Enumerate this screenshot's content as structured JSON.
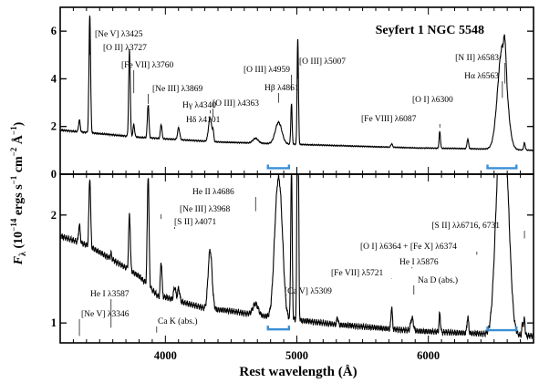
{
  "chart_data": {
    "type": "line",
    "title": "Seyfert 1 NGC 5548",
    "xlabel": "Rest wavelength (Å)",
    "ylabel": "F_λ (10^-14 ergs s^-1 cm^-2 Å^-1)",
    "ylabel_parts": {
      "main": "F",
      "sub": "λ",
      "rest": " (10",
      "exp1": "−14",
      "units": " ergs s",
      "exp2": "−1",
      "cm": " cm",
      "exp3": "−2",
      "ang": " Å",
      "exp4": "−1",
      "close": ")"
    },
    "xlim": [
      3200,
      6800
    ],
    "xticks": [
      {
        "v": 4000,
        "label": "4000"
      },
      {
        "v": 5000,
        "label": "5000"
      },
      {
        "v": 6000,
        "label": "6000"
      }
    ],
    "grid": false,
    "panels": [
      {
        "id": "top",
        "scale": "linear",
        "ylim": [
          0,
          7
        ],
        "yticks": [
          {
            "v": 0,
            "label": "0"
          },
          {
            "v": 2,
            "label": "2"
          },
          {
            "v": 4,
            "label": "4"
          },
          {
            "v": 6,
            "label": "6"
          }
        ],
        "continuum": [
          [
            3200,
            1.85
          ],
          [
            3500,
            1.7
          ],
          [
            3800,
            1.55
          ],
          [
            4100,
            1.45
          ],
          [
            4400,
            1.35
          ],
          [
            4700,
            1.3
          ],
          [
            5000,
            1.25
          ],
          [
            5300,
            1.2
          ],
          [
            5600,
            1.15
          ],
          [
            5900,
            1.1
          ],
          [
            6200,
            1.08
          ],
          [
            6500,
            1.05
          ],
          [
            6800,
            1.0
          ]
        ],
        "lines": [
          {
            "w": 3346,
            "h": 0.5,
            "s": 6
          },
          {
            "w": 3425,
            "h": 5.0,
            "s": 6
          },
          {
            "w": 3727,
            "h": 3.6,
            "s": 6
          },
          {
            "w": 3760,
            "h": 0.5,
            "s": 6
          },
          {
            "w": 3869,
            "h": 1.4,
            "s": 6
          },
          {
            "w": 3968,
            "h": 0.6,
            "s": 6
          },
          {
            "w": 4101,
            "h": 0.5,
            "s": 8
          },
          {
            "w": 4340,
            "h": 1.0,
            "s": 12
          },
          {
            "w": 4363,
            "h": 0.4,
            "s": 5
          },
          {
            "w": 4686,
            "h": 0.2,
            "s": 20
          },
          {
            "w": 4861,
            "h": 0.9,
            "s": 25
          },
          {
            "w": 4959,
            "h": 1.7,
            "s": 5
          },
          {
            "w": 5007,
            "h": 4.5,
            "s": 5
          },
          {
            "w": 5721,
            "h": 0.15,
            "s": 6
          },
          {
            "w": 6087,
            "h": 0.7,
            "s": 5
          },
          {
            "w": 6300,
            "h": 0.4,
            "s": 6
          },
          {
            "w": 6563,
            "h": 4.3,
            "s": 35
          },
          {
            "w": 6583,
            "h": 1.0,
            "s": 8
          },
          {
            "w": 6731,
            "h": 0.3,
            "s": 6
          }
        ],
        "annotations": [
          {
            "text": "[Ne V] λ3425",
            "w": 3425,
            "v": 5.0
          },
          {
            "text": "[O II] λ3727",
            "w": 3727,
            "v": 5.1
          },
          {
            "text": "[Fe VII] λ3760",
            "w": 3760,
            "v": 3.4
          },
          {
            "text": "[Ne III] λ3869",
            "w": 3869,
            "v": 2.95
          },
          {
            "text": "Hγ λ4340",
            "w": 4340,
            "v": 2.55
          },
          {
            "text": "Hδ λ4101",
            "w": 4101,
            "v": 2.05
          },
          {
            "text": "[O III] λ4363",
            "w": 4363,
            "v": 2.4
          },
          {
            "text": "[O III] λ4959",
            "w": 4959,
            "v": 3.5
          },
          {
            "text": "Hβ λ4861",
            "w": 4861,
            "v": 3.0
          },
          {
            "text": "[O III] λ5007",
            "w": 5007,
            "v": 4.0
          },
          {
            "text": "[Fe VIII] λ6087",
            "w": 6087,
            "v": 1.95
          },
          {
            "text": "[O I] λ6300",
            "w": 6300,
            "v": 3.1
          },
          {
            "text": "[N II] λ6583",
            "w": 6583,
            "v": 3.8
          },
          {
            "text": "Hα λ6563",
            "w": 6563,
            "v": 3.2
          }
        ],
        "broad_markers": [
          {
            "x1": 4780,
            "x2": 4940,
            "v": 0.25
          },
          {
            "x1": 6450,
            "x2": 6670,
            "v": 0.25
          }
        ]
      },
      {
        "id": "bottom",
        "scale": "log",
        "ylim": [
          0.88,
          2.6
        ],
        "yticks": [
          {
            "v": 1,
            "label": "1"
          },
          {
            "v": 2,
            "label": "2"
          }
        ],
        "continuum": [
          [
            3200,
            1.75
          ],
          [
            3400,
            1.65
          ],
          [
            3600,
            1.5
          ],
          [
            3800,
            1.35
          ],
          [
            3950,
            1.18
          ],
          [
            4000,
            1.18
          ],
          [
            4100,
            1.15
          ],
          [
            4300,
            1.1
          ],
          [
            4500,
            1.08
          ],
          [
            4700,
            1.05
          ],
          [
            5000,
            1.02
          ],
          [
            5300,
            0.99
          ],
          [
            5600,
            0.97
          ],
          [
            5900,
            0.95
          ],
          [
            6200,
            0.94
          ],
          [
            6500,
            0.93
          ],
          [
            6800,
            0.92
          ]
        ],
        "lines": [
          {
            "w": 3346,
            "h": 0.2,
            "s": 6
          },
          {
            "w": 3425,
            "h": 0.9,
            "s": 6
          },
          {
            "w": 3587,
            "h": 0.05,
            "s": 5
          },
          {
            "w": 3727,
            "h": 0.6,
            "s": 6
          },
          {
            "w": 3869,
            "h": 1.3,
            "s": 6
          },
          {
            "w": 3968,
            "h": 0.3,
            "s": 6
          },
          {
            "w": 4071,
            "h": 0.1,
            "s": 8
          },
          {
            "w": 4101,
            "h": 0.1,
            "s": 8
          },
          {
            "w": 4340,
            "h": 0.5,
            "s": 14
          },
          {
            "w": 4686,
            "h": 0.08,
            "s": 20
          },
          {
            "w": 4861,
            "h": 1.5,
            "s": 25
          },
          {
            "w": 4959,
            "h": 1.6,
            "s": 5
          },
          {
            "w": 5007,
            "h": 3.5,
            "s": 5
          },
          {
            "w": 5309,
            "h": 0.05,
            "s": 5
          },
          {
            "w": 5721,
            "h": 0.15,
            "s": 5
          },
          {
            "w": 5876,
            "h": 0.08,
            "s": 10
          },
          {
            "w": 6087,
            "h": 0.12,
            "s": 5
          },
          {
            "w": 6300,
            "h": 0.1,
            "s": 6
          },
          {
            "w": 6563,
            "h": 3.0,
            "s": 35
          },
          {
            "w": 6717,
            "h": 0.08,
            "s": 5
          },
          {
            "w": 6731,
            "h": 0.1,
            "s": 5
          }
        ],
        "annotations": [
          {
            "text": "He II λ4686",
            "w": 4686,
            "v": 2.05
          },
          {
            "text": "[Ne III] λ3968",
            "w": 3968,
            "v": 1.95
          },
          {
            "text": "[S II] λ4071",
            "w": 4071,
            "v": 1.83
          },
          {
            "text": "[S II] λλ6716, 6731",
            "w": 6731,
            "v": 1.72
          },
          {
            "text": "[O I] λ6364 + [Fe X] λ6374",
            "w": 6369,
            "v": 1.55
          },
          {
            "text": "He I λ5876",
            "w": 5876,
            "v": 1.42
          },
          {
            "text": "[Fe VII] λ5721",
            "w": 5721,
            "v": 1.33
          },
          {
            "text": "Na D (abs.)",
            "w": 5890,
            "v": 1.2
          },
          {
            "text": "[Ca V] λ5309",
            "w": 5309,
            "v": 1.19
          },
          {
            "text": "He I λ3587",
            "w": 3587,
            "v": 0.97
          },
          {
            "text": "[Ne V] λ3346",
            "w": 3346,
            "v": 0.92
          },
          {
            "text": "Ca K (abs.)",
            "w": 3934,
            "v": 0.94
          }
        ],
        "broad_markers": [
          {
            "x1": 4780,
            "x2": 4940,
            "v": 0.96
          },
          {
            "x1": 6450,
            "x2": 6670,
            "v": 0.955
          }
        ]
      }
    ],
    "marker_color": "#3a8fd6",
    "line_color": "#000000"
  }
}
